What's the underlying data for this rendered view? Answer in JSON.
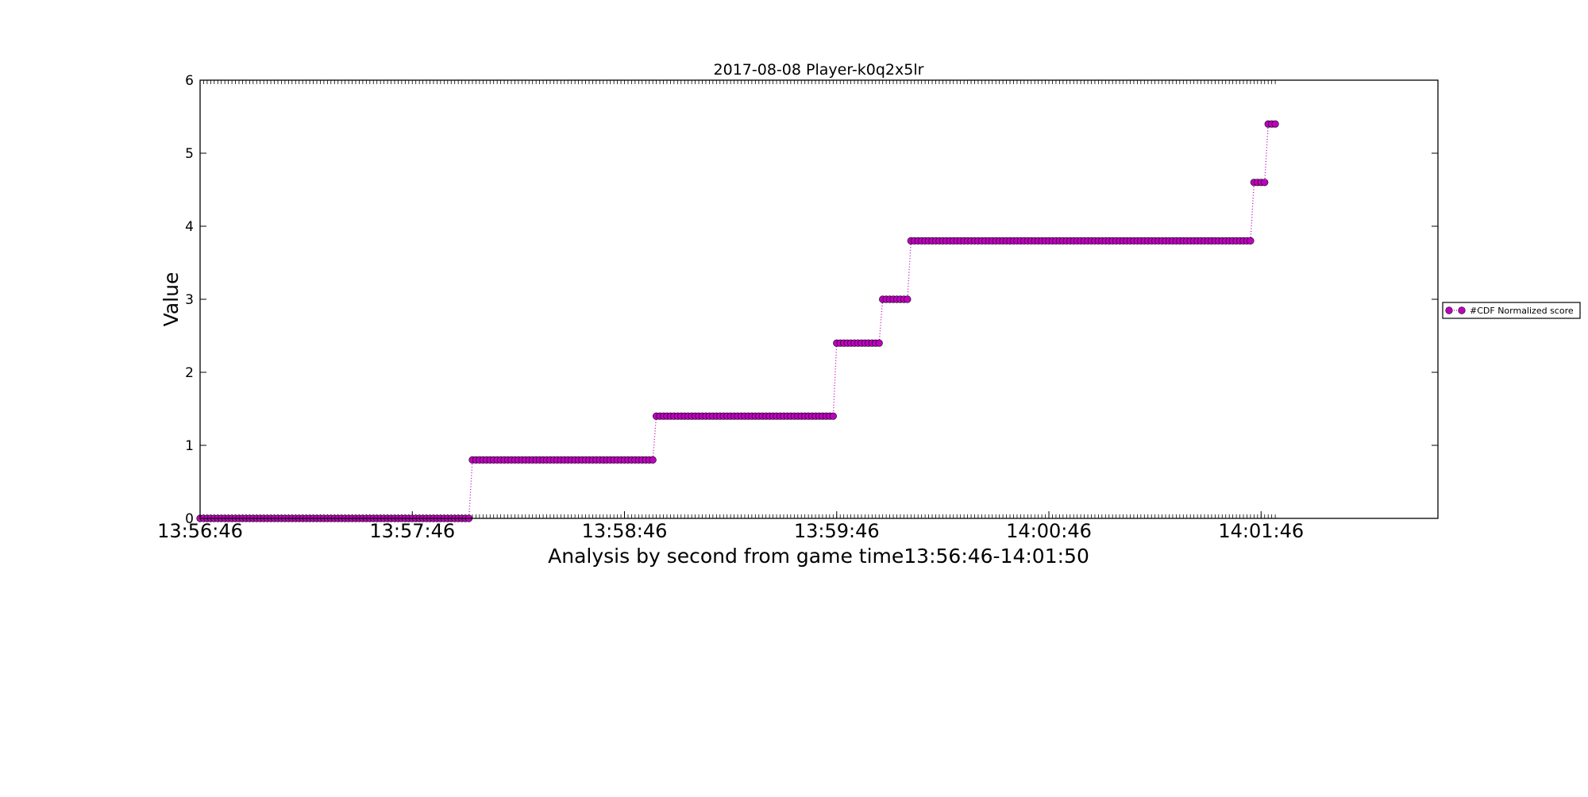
{
  "chart_data": {
    "type": "line",
    "title": "2017-08-08 Player-k0q2x5lr",
    "xlabel": "Analysis by second from game time13:56:46-14:01:50",
    "ylabel": "Value",
    "xlim": [
      0,
      350
    ],
    "ylim": [
      0,
      6
    ],
    "yticks": [
      0,
      1,
      2,
      3,
      4,
      5,
      6
    ],
    "xticks": [
      {
        "value": 0,
        "label": "13:56:46"
      },
      {
        "value": 60,
        "label": "13:57:46"
      },
      {
        "value": 120,
        "label": "13:58:46"
      },
      {
        "value": 180,
        "label": "13:59:46"
      },
      {
        "value": 240,
        "label": "14:00:46"
      },
      {
        "value": 300,
        "label": "14:01:46"
      }
    ],
    "grid": false,
    "legend_position": "right",
    "series": [
      {
        "name": "#CDF Normalized score",
        "color": "#bf00bf",
        "marker": "circle",
        "linestyle": "dotted",
        "segments": [
          {
            "x_start": 0,
            "x_end": 76,
            "y": 0
          },
          {
            "x_start": 77,
            "x_end": 128,
            "y": 0.8
          },
          {
            "x_start": 129,
            "x_end": 179,
            "y": 1.4
          },
          {
            "x_start": 180,
            "x_end": 192,
            "y": 2.4
          },
          {
            "x_start": 193,
            "x_end": 200,
            "y": 3.0
          },
          {
            "x_start": 201,
            "x_end": 297,
            "y": 3.8
          },
          {
            "x_start": 298,
            "x_end": 301,
            "y": 4.6
          },
          {
            "x_start": 302,
            "x_end": 304,
            "y": 5.4
          }
        ]
      }
    ]
  }
}
